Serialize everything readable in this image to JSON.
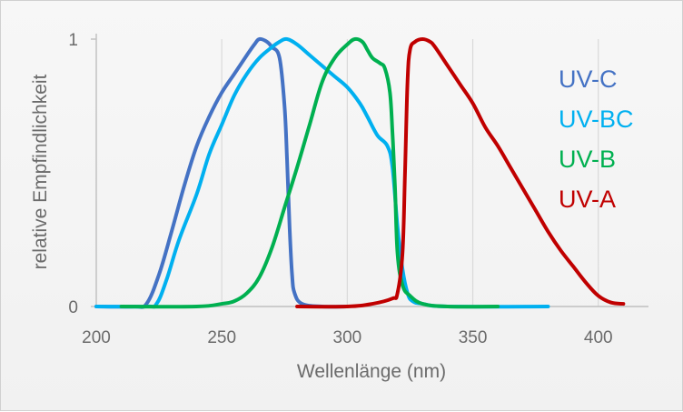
{
  "chart_data": {
    "type": "line",
    "title": "",
    "xlabel": "Wellenlänge (nm)",
    "ylabel": "relative Empfindlichkeit",
    "xlim": [
      200,
      410
    ],
    "ylim": [
      0,
      1
    ],
    "x_ticks": [
      "200",
      "250",
      "300",
      "350",
      "400"
    ],
    "y_ticks": [
      "0",
      "1"
    ],
    "grid": "vertical",
    "legend_position": "right",
    "series": [
      {
        "name": "UV-C",
        "color": "#4472c4",
        "points": [
          [
            200,
            0
          ],
          [
            215,
            0
          ],
          [
            220,
            0.01
          ],
          [
            225,
            0.12
          ],
          [
            230,
            0.28
          ],
          [
            235,
            0.45
          ],
          [
            240,
            0.6
          ],
          [
            245,
            0.71
          ],
          [
            250,
            0.8
          ],
          [
            255,
            0.87
          ],
          [
            260,
            0.94
          ],
          [
            263,
            0.98
          ],
          [
            265,
            1.0
          ],
          [
            268,
            0.99
          ],
          [
            270,
            0.97
          ],
          [
            273,
            0.93
          ],
          [
            275,
            0.75
          ],
          [
            276,
            0.55
          ],
          [
            277,
            0.3
          ],
          [
            278,
            0.12
          ],
          [
            279,
            0.05
          ],
          [
            282,
            0.01
          ],
          [
            290,
            0
          ],
          [
            300,
            0
          ]
        ]
      },
      {
        "name": "UV-BC",
        "color": "#00b0f0",
        "points": [
          [
            200,
            0
          ],
          [
            220,
            0
          ],
          [
            224,
            0.01
          ],
          [
            228,
            0.1
          ],
          [
            233,
            0.25
          ],
          [
            240,
            0.42
          ],
          [
            245,
            0.57
          ],
          [
            250,
            0.68
          ],
          [
            255,
            0.79
          ],
          [
            260,
            0.87
          ],
          [
            265,
            0.93
          ],
          [
            270,
            0.97
          ],
          [
            273,
            0.99
          ],
          [
            276,
            1.0
          ],
          [
            280,
            0.98
          ],
          [
            285,
            0.94
          ],
          [
            290,
            0.9
          ],
          [
            295,
            0.86
          ],
          [
            300,
            0.82
          ],
          [
            305,
            0.76
          ],
          [
            308,
            0.71
          ],
          [
            312,
            0.64
          ],
          [
            316,
            0.6
          ],
          [
            318,
            0.52
          ],
          [
            320,
            0.3
          ],
          [
            322,
            0.14
          ],
          [
            324,
            0.05
          ],
          [
            326,
            0.02
          ],
          [
            330,
            0.01
          ],
          [
            340,
            0
          ],
          [
            380,
            0
          ]
        ]
      },
      {
        "name": "UV-B",
        "color": "#00b050",
        "points": [
          [
            210,
            0
          ],
          [
            240,
            0
          ],
          [
            250,
            0.01
          ],
          [
            255,
            0.02
          ],
          [
            260,
            0.05
          ],
          [
            265,
            0.11
          ],
          [
            270,
            0.22
          ],
          [
            275,
            0.37
          ],
          [
            280,
            0.52
          ],
          [
            285,
            0.68
          ],
          [
            290,
            0.84
          ],
          [
            295,
            0.93
          ],
          [
            300,
            0.98
          ],
          [
            303,
            1.0
          ],
          [
            306,
            0.99
          ],
          [
            308,
            0.96
          ],
          [
            310,
            0.93
          ],
          [
            313,
            0.91
          ],
          [
            315,
            0.89
          ],
          [
            317,
            0.8
          ],
          [
            318,
            0.65
          ],
          [
            319,
            0.45
          ],
          [
            320,
            0.2
          ],
          [
            322,
            0.08
          ],
          [
            325,
            0.04
          ],
          [
            330,
            0.01
          ],
          [
            340,
            0
          ],
          [
            360,
            0
          ]
        ]
      },
      {
        "name": "UV-A",
        "color": "#c00000",
        "points": [
          [
            280,
            0
          ],
          [
            300,
            0
          ],
          [
            310,
            0.01
          ],
          [
            318,
            0.03
          ],
          [
            320,
            0.05
          ],
          [
            322,
            0.2
          ],
          [
            323,
            0.5
          ],
          [
            324,
            0.84
          ],
          [
            325,
            0.96
          ],
          [
            327,
            0.99
          ],
          [
            330,
            1.0
          ],
          [
            333,
            0.99
          ],
          [
            335,
            0.97
          ],
          [
            340,
            0.9
          ],
          [
            345,
            0.83
          ],
          [
            350,
            0.76
          ],
          [
            355,
            0.67
          ],
          [
            360,
            0.6
          ],
          [
            365,
            0.52
          ],
          [
            370,
            0.44
          ],
          [
            375,
            0.36
          ],
          [
            380,
            0.28
          ],
          [
            385,
            0.21
          ],
          [
            390,
            0.15
          ],
          [
            395,
            0.09
          ],
          [
            400,
            0.04
          ],
          [
            405,
            0.015
          ],
          [
            410,
            0.01
          ]
        ]
      }
    ]
  }
}
